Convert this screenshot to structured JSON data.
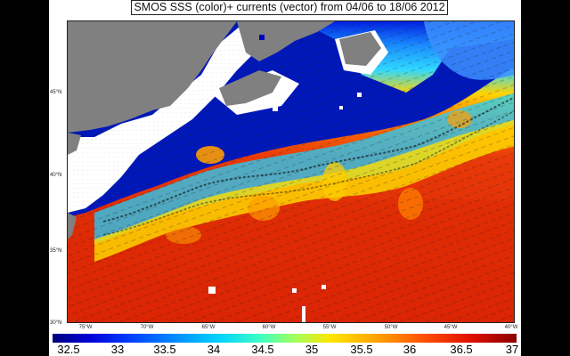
{
  "title": "SMOS SSS (color)+ currents (vector) from 04/06 to 18/06 2012",
  "map": {
    "lon_ticks": [
      "75°W",
      "70°W",
      "65°W",
      "60°W",
      "55°W",
      "50°W",
      "45°W",
      "40°W"
    ],
    "lat_ticks": [
      "45°N",
      "40°N",
      "35°N",
      "30°N"
    ],
    "land_color": "#7f7f7f",
    "fresh_color": "#0000a0",
    "salty_color": "#e63a0a"
  },
  "colorbar": {
    "ticks": [
      "32.5",
      "33",
      "33.5",
      "34",
      "34.5",
      "35",
      "35.5",
      "36",
      "36.5",
      "37"
    ]
  }
}
